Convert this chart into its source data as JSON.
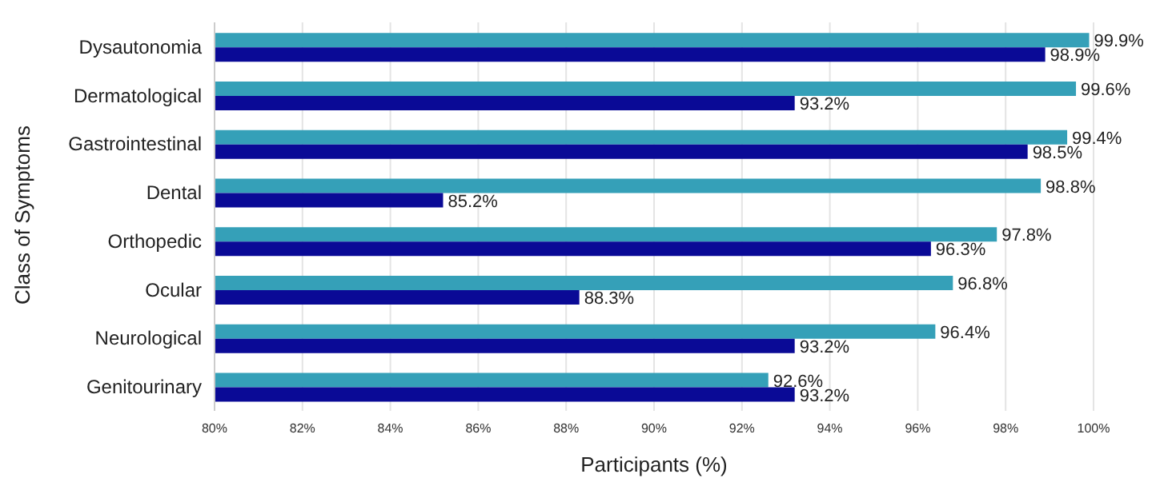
{
  "chart_data": {
    "type": "bar",
    "orientation": "horizontal",
    "xlabel": "Participants (%)",
    "ylabel": "Class of Symptoms",
    "categories": [
      "Dysautonomia",
      "Dermatological",
      "Gastrointestinal",
      "Dental",
      "Orthopedic",
      "Ocular",
      "Neurological",
      "Genitourinary"
    ],
    "series": [
      {
        "color": "#35a0b8",
        "values": [
          99.9,
          99.6,
          99.4,
          98.8,
          97.8,
          96.8,
          96.4,
          92.6
        ],
        "value_labels": [
          "99.9%",
          "99.6%",
          "99.4%",
          "98.8%",
          "97.8%",
          "96.8%",
          "96.4%",
          "92.6%"
        ]
      },
      {
        "color": "#0a0a96",
        "values": [
          98.9,
          93.2,
          98.5,
          85.2,
          96.3,
          88.3,
          93.2,
          93.2
        ],
        "value_labels": [
          "98.9%",
          "93.2%",
          "98.5%",
          "85.2%",
          "96.3%",
          "88.3%",
          "93.2%",
          "93.2%"
        ]
      }
    ],
    "xlim": [
      80,
      100
    ],
    "xticks": [
      {
        "value": 80,
        "label": "80%"
      },
      {
        "value": 82,
        "label": "82%"
      },
      {
        "value": 84,
        "label": "84%"
      },
      {
        "value": 86,
        "label": "86%"
      },
      {
        "value": 88,
        "label": "88%"
      },
      {
        "value": 90,
        "label": "90%"
      },
      {
        "value": 92,
        "label": "92%"
      },
      {
        "value": 94,
        "label": "94%"
      },
      {
        "value": 96,
        "label": "96%"
      },
      {
        "value": 98,
        "label": "98%"
      },
      {
        "value": 100,
        "label": "100%"
      }
    ],
    "grid": "x",
    "legend": false
  }
}
